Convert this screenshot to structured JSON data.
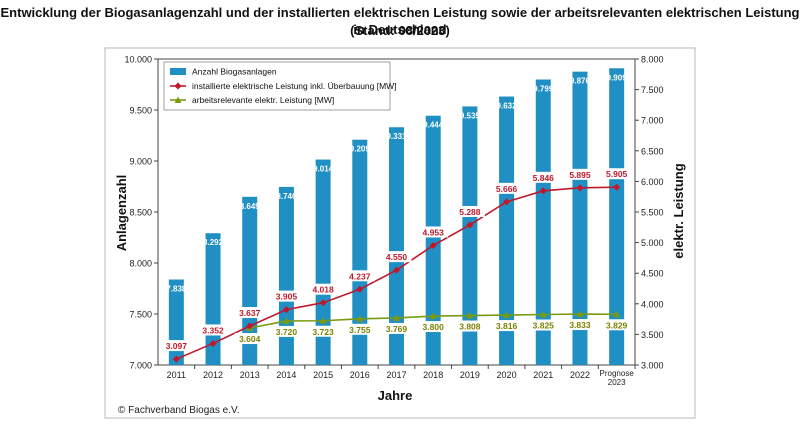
{
  "title_line1": "Entwicklung der Biogasanlagenzahl und der installierten elektrischen Leistung sowie der arbeitsrelevanten elektrischen Leistung in Deutschland",
  "title_line2": "(Stand: 08/2023)",
  "source": "© Fachverband Biogas e.V.",
  "colors": {
    "bar": "#1f8fc4",
    "installed_line": "#c0182b",
    "working_line": "#7a9a12",
    "value_text_installed": "#c0182b",
    "value_text_working": "#7a8000",
    "bar_label": "#ffffff"
  },
  "chart_data": {
    "type": "bar",
    "categories": [
      "2011",
      "2012",
      "2013",
      "2014",
      "2015",
      "2016",
      "2017",
      "2018",
      "2019",
      "2020",
      "2021",
      "2022",
      "Prognose 2023"
    ],
    "xlabel": "Jahre",
    "ylabel": "Anlagenzahl",
    "y2label": "elektr. Leistung",
    "ylim": [
      7000,
      10000
    ],
    "y_ticks": [
      "7.000",
      "7.500",
      "8.000",
      "8.500",
      "9.000",
      "9.500",
      "10.000"
    ],
    "y2lim": [
      3000,
      8000
    ],
    "y2_ticks": [
      "3.000",
      "3.500",
      "4.000",
      "4.500",
      "5.000",
      "5.500",
      "6.000",
      "6.500",
      "7.000",
      "7.500",
      "8.000"
    ],
    "grid": false,
    "legend_position": "top-left",
    "series": [
      {
        "name": "Anzahl Biogasanlagen",
        "kind": "bar",
        "axis": "left",
        "values": [
          7838,
          8292,
          8649,
          8746,
          9014,
          9209,
          9331,
          9444,
          9535,
          9632,
          9799,
          9876,
          9909
        ],
        "labels": [
          "7.838",
          "8.292",
          "8.649",
          "8.746",
          "9.014",
          "9.209",
          "9.331",
          "9.444",
          "9.535",
          "9.632",
          "9.799",
          "9.876",
          "9.909"
        ]
      },
      {
        "name": "installierte elektrische Leistung inkl. Überbauung [MW]",
        "kind": "line",
        "axis": "right",
        "marker": "diamond",
        "values": [
          3097,
          3352,
          3637,
          3905,
          4018,
          4237,
          4550,
          4953,
          5288,
          5666,
          5846,
          5895,
          5905
        ],
        "labels": [
          "3.097",
          "3.352",
          "3.637",
          "3.905",
          "4.018",
          "4.237",
          "4.550",
          "4.953",
          "5.288",
          "5.666",
          "5.846",
          "5.895",
          "5.905"
        ]
      },
      {
        "name": "arbeitsrelevante elektr. Leistung [MW]",
        "kind": "line",
        "axis": "right",
        "marker": "triangle",
        "values": [
          null,
          null,
          3604,
          3720,
          3723,
          3755,
          3769,
          3800,
          3808,
          3816,
          3825,
          3833,
          3829
        ],
        "labels": [
          "",
          "",
          "3.604",
          "3.720",
          "3.723",
          "3.755",
          "3.769",
          "3.800",
          "3.808",
          "3.816",
          "3.825",
          "3.833",
          "3.829"
        ]
      }
    ]
  }
}
